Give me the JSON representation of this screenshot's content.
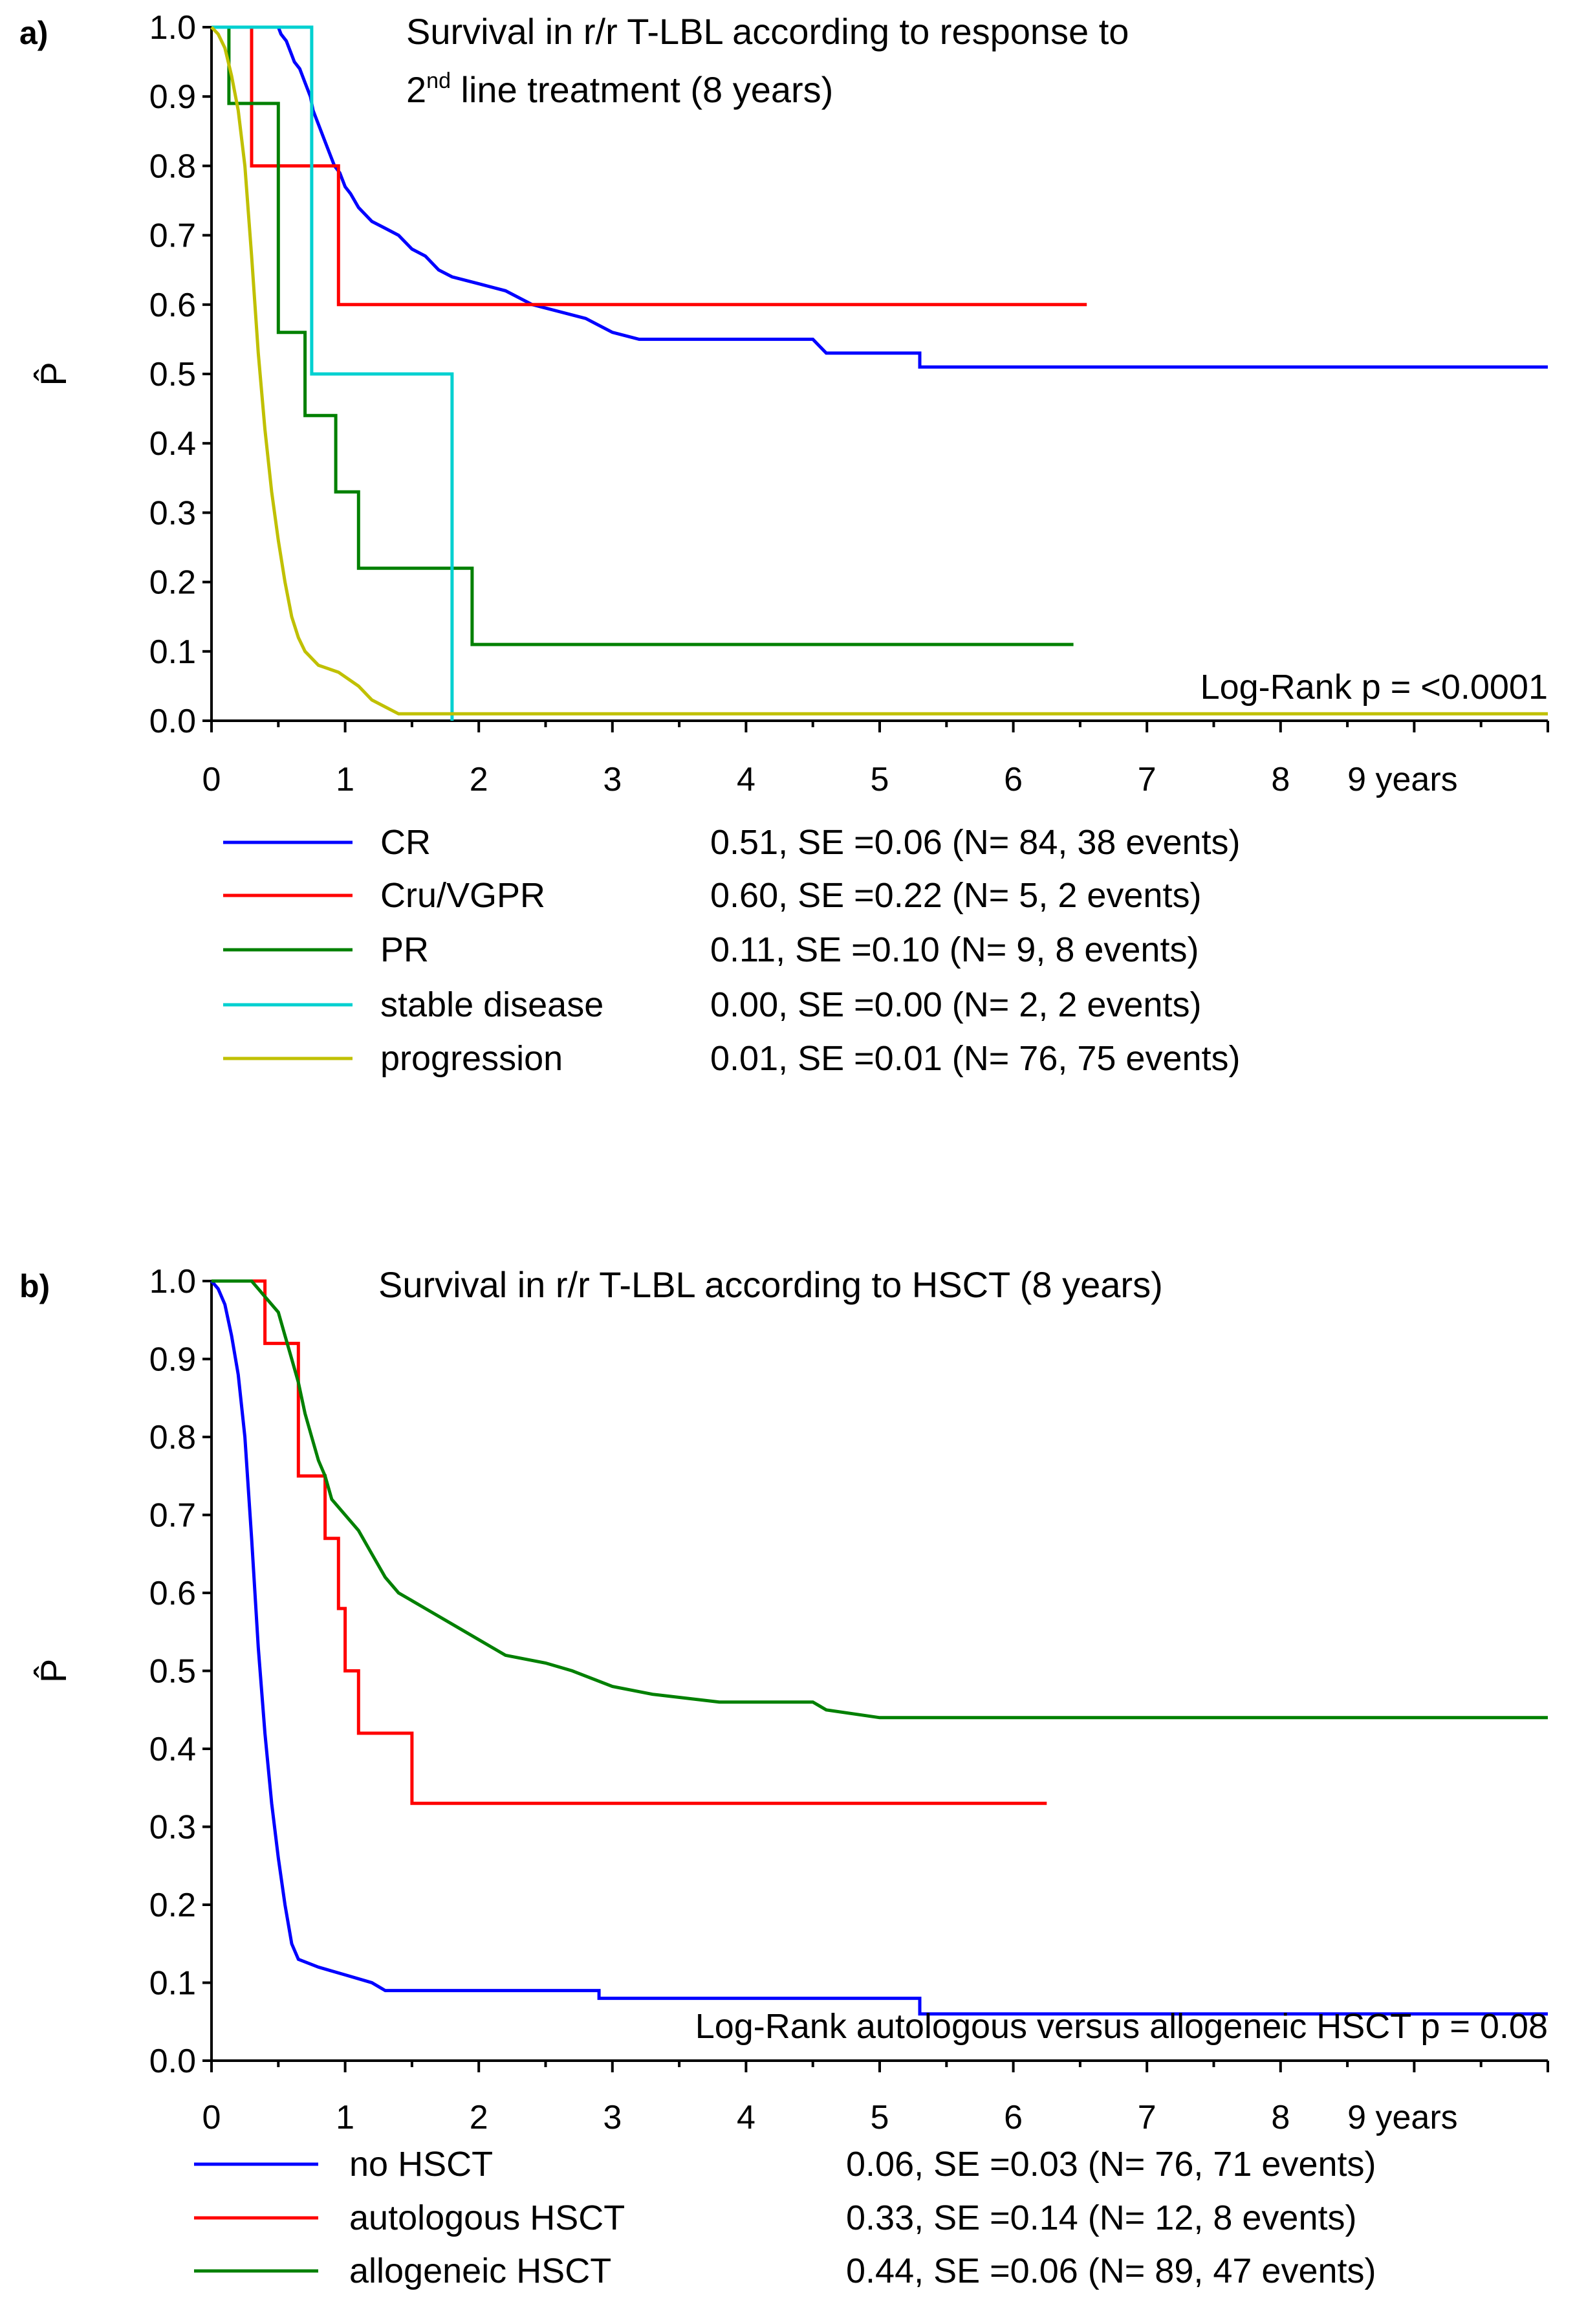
{
  "chart_data": [
    {
      "panel": "a)",
      "type": "line",
      "title_parts": [
        "Survival in r/r T-LBL according to response to",
        "2",
        "nd",
        " line treatment (8 years)"
      ],
      "ylabel": "P̂",
      "xlim": [
        0,
        10
      ],
      "ylim": [
        0,
        1
      ],
      "x_ticks": [
        "0",
        "1",
        "2",
        "3",
        "4",
        "5",
        "6",
        "7",
        "8",
        "9 years"
      ],
      "y_ticks": [
        "0.0",
        "0.1",
        "0.2",
        "0.3",
        "0.4",
        "0.5",
        "0.6",
        "0.7",
        "0.8",
        "0.9",
        "1.0"
      ],
      "annotation": "Log-Rank p = <0.0001",
      "series": [
        {
          "name": "CR",
          "stats": "0.51, SE =0.06 (N= 84, 38 events)",
          "color": "#0000ff",
          "points": [
            [
              0,
              1
            ],
            [
              0.5,
              1
            ],
            [
              0.52,
              0.99
            ],
            [
              0.56,
              0.98
            ],
            [
              0.6,
              0.96
            ],
            [
              0.62,
              0.95
            ],
            [
              0.66,
              0.94
            ],
            [
              0.68,
              0.93
            ],
            [
              0.7,
              0.92
            ],
            [
              0.74,
              0.9
            ],
            [
              0.76,
              0.88
            ],
            [
              0.8,
              0.86
            ],
            [
              0.84,
              0.84
            ],
            [
              0.88,
              0.82
            ],
            [
              0.92,
              0.8
            ],
            [
              0.96,
              0.79
            ],
            [
              1.0,
              0.77
            ],
            [
              1.04,
              0.76
            ],
            [
              1.1,
              0.74
            ],
            [
              1.2,
              0.72
            ],
            [
              1.3,
              0.71
            ],
            [
              1.4,
              0.7
            ],
            [
              1.5,
              0.68
            ],
            [
              1.6,
              0.67
            ],
            [
              1.7,
              0.65
            ],
            [
              1.8,
              0.64
            ],
            [
              2.0,
              0.63
            ],
            [
              2.2,
              0.62
            ],
            [
              2.4,
              0.6
            ],
            [
              2.6,
              0.59
            ],
            [
              2.8,
              0.58
            ],
            [
              3.0,
              0.56
            ],
            [
              3.2,
              0.55
            ],
            [
              3.5,
              0.55
            ],
            [
              4.5,
              0.55
            ],
            [
              4.6,
              0.53
            ],
            [
              5.3,
              0.53
            ],
            [
              5.3,
              0.51
            ],
            [
              10,
              0.51
            ]
          ]
        },
        {
          "name": "Cru/VGPR",
          "stats": "0.60, SE =0.22 (N= 5, 2 events)",
          "color": "#ff0000",
          "points": [
            [
              0,
              1
            ],
            [
              0.3,
              1
            ],
            [
              0.3,
              0.8
            ],
            [
              0.95,
              0.8
            ],
            [
              0.95,
              0.6
            ],
            [
              6.55,
              0.6
            ]
          ]
        },
        {
          "name": "PR",
          "stats": "0.11, SE =0.10 (N= 9, 8 events)",
          "color": "#008000",
          "points": [
            [
              0,
              1
            ],
            [
              0.13,
              1
            ],
            [
              0.13,
              0.89
            ],
            [
              0.5,
              0.89
            ],
            [
              0.5,
              0.56
            ],
            [
              0.7,
              0.56
            ],
            [
              0.7,
              0.44
            ],
            [
              0.93,
              0.44
            ],
            [
              0.93,
              0.33
            ],
            [
              1.1,
              0.33
            ],
            [
              1.1,
              0.22
            ],
            [
              1.95,
              0.22
            ],
            [
              1.95,
              0.11
            ],
            [
              6.45,
              0.11
            ]
          ]
        },
        {
          "name": "stable disease",
          "stats": "0.00, SE =0.00 (N= 2, 2 events)",
          "color": "#00d0d0",
          "points": [
            [
              0,
              1
            ],
            [
              0.75,
              1
            ],
            [
              0.75,
              0.5
            ],
            [
              1.8,
              0.5
            ],
            [
              1.8,
              0
            ]
          ]
        },
        {
          "name": "progression",
          "stats": "0.01, SE =0.01 (N= 76, 75 events)",
          "color": "#c0c000",
          "points": [
            [
              0,
              1
            ],
            [
              0.05,
              0.99
            ],
            [
              0.1,
              0.97
            ],
            [
              0.15,
              0.93
            ],
            [
              0.2,
              0.88
            ],
            [
              0.25,
              0.8
            ],
            [
              0.3,
              0.67
            ],
            [
              0.35,
              0.53
            ],
            [
              0.4,
              0.42
            ],
            [
              0.45,
              0.33
            ],
            [
              0.5,
              0.26
            ],
            [
              0.55,
              0.2
            ],
            [
              0.6,
              0.15
            ],
            [
              0.65,
              0.12
            ],
            [
              0.7,
              0.1
            ],
            [
              0.8,
              0.08
            ],
            [
              0.95,
              0.07
            ],
            [
              1.1,
              0.05
            ],
            [
              1.2,
              0.03
            ],
            [
              1.3,
              0.02
            ],
            [
              1.4,
              0.01
            ],
            [
              10,
              0.01
            ]
          ]
        }
      ]
    },
    {
      "panel": "b)",
      "type": "line",
      "title_parts": [
        "Survival in r/r T-LBL according to HSCT (8 years)"
      ],
      "ylabel": "P̂",
      "xlim": [
        0,
        10
      ],
      "ylim": [
        0,
        1
      ],
      "x_ticks": [
        "0",
        "1",
        "2",
        "3",
        "4",
        "5",
        "6",
        "7",
        "8",
        "9 years"
      ],
      "y_ticks": [
        "0.0",
        "0.1",
        "0.2",
        "0.3",
        "0.4",
        "0.5",
        "0.6",
        "0.7",
        "0.8",
        "0.9",
        "1.0"
      ],
      "annotation": "Log-Rank autologous versus allogeneic HSCT p = 0.08",
      "series": [
        {
          "name": "no HSCT",
          "stats": "0.06, SE =0.03 (N= 76, 71 events)",
          "color": "#0000ff",
          "points": [
            [
              0,
              1
            ],
            [
              0.05,
              0.99
            ],
            [
              0.1,
              0.97
            ],
            [
              0.15,
              0.93
            ],
            [
              0.2,
              0.88
            ],
            [
              0.25,
              0.8
            ],
            [
              0.3,
              0.67
            ],
            [
              0.35,
              0.53
            ],
            [
              0.4,
              0.42
            ],
            [
              0.45,
              0.33
            ],
            [
              0.5,
              0.26
            ],
            [
              0.55,
              0.2
            ],
            [
              0.6,
              0.15
            ],
            [
              0.65,
              0.13
            ],
            [
              0.8,
              0.12
            ],
            [
              1.0,
              0.11
            ],
            [
              1.2,
              0.1
            ],
            [
              1.3,
              0.09
            ],
            [
              2.9,
              0.09
            ],
            [
              2.9,
              0.08
            ],
            [
              5.3,
              0.08
            ],
            [
              5.3,
              0.06
            ],
            [
              10,
              0.06
            ]
          ]
        },
        {
          "name": "autologous HSCT",
          "stats": "0.33, SE =0.14 (N= 12, 8 events)",
          "color": "#ff0000",
          "points": [
            [
              0,
              1
            ],
            [
              0.4,
              1
            ],
            [
              0.4,
              0.92
            ],
            [
              0.65,
              0.92
            ],
            [
              0.65,
              0.75
            ],
            [
              0.85,
              0.75
            ],
            [
              0.85,
              0.67
            ],
            [
              0.95,
              0.67
            ],
            [
              0.95,
              0.58
            ],
            [
              1.0,
              0.58
            ],
            [
              1.0,
              0.5
            ],
            [
              1.1,
              0.5
            ],
            [
              1.1,
              0.42
            ],
            [
              1.5,
              0.42
            ],
            [
              1.5,
              0.33
            ],
            [
              6.25,
              0.33
            ]
          ]
        },
        {
          "name": "allogeneic HSCT",
          "stats": "0.44, SE =0.06 (N= 89, 47 events)",
          "color": "#008000",
          "points": [
            [
              0,
              1
            ],
            [
              0.3,
              1
            ],
            [
              0.35,
              0.99
            ],
            [
              0.4,
              0.98
            ],
            [
              0.5,
              0.96
            ],
            [
              0.55,
              0.93
            ],
            [
              0.6,
              0.9
            ],
            [
              0.65,
              0.87
            ],
            [
              0.7,
              0.83
            ],
            [
              0.75,
              0.8
            ],
            [
              0.8,
              0.77
            ],
            [
              0.85,
              0.75
            ],
            [
              0.9,
              0.72
            ],
            [
              1.0,
              0.7
            ],
            [
              1.1,
              0.68
            ],
            [
              1.2,
              0.65
            ],
            [
              1.3,
              0.62
            ],
            [
              1.4,
              0.6
            ],
            [
              1.6,
              0.58
            ],
            [
              1.8,
              0.56
            ],
            [
              2.0,
              0.54
            ],
            [
              2.2,
              0.52
            ],
            [
              2.5,
              0.51
            ],
            [
              2.7,
              0.5
            ],
            [
              3.0,
              0.48
            ],
            [
              3.3,
              0.47
            ],
            [
              3.8,
              0.46
            ],
            [
              4.5,
              0.46
            ],
            [
              4.6,
              0.45
            ],
            [
              5.0,
              0.44
            ],
            [
              10,
              0.44
            ]
          ]
        }
      ]
    }
  ]
}
